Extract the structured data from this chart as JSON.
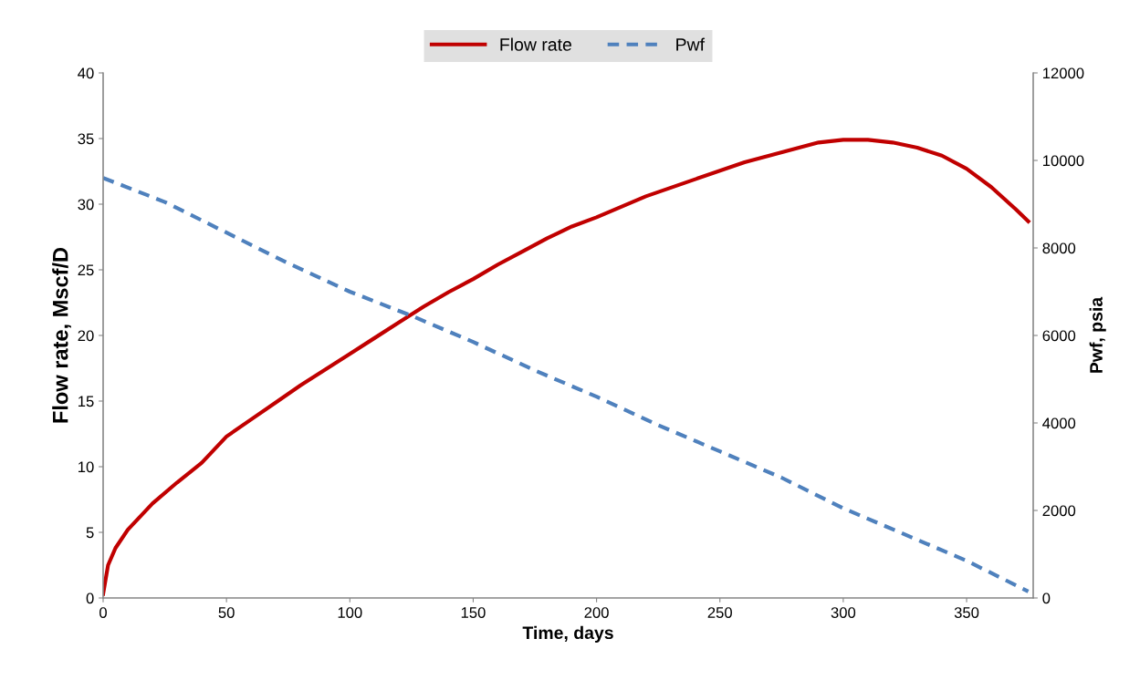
{
  "chart_data": {
    "type": "line",
    "xlabel": "Time, days",
    "ylabel": "Flow rate, Mscf/D",
    "y2label": "Pwf, psia",
    "xlim": [
      0,
      377
    ],
    "xticks": [
      0,
      50,
      100,
      150,
      200,
      250,
      300,
      350
    ],
    "ylim": [
      0,
      40
    ],
    "yticks": [
      0,
      5,
      10,
      15,
      20,
      25,
      30,
      35,
      40
    ],
    "y2lim": [
      0,
      12000
    ],
    "y2ticks": [
      0,
      2000,
      4000,
      6000,
      8000,
      10000,
      12000
    ],
    "legend": "top",
    "grid": false,
    "series": [
      {
        "name": "Flow rate",
        "color": "#c00000",
        "line_style": "solid",
        "x": [
          0,
          2,
          5,
          10,
          20,
          30,
          40,
          50,
          60,
          70,
          80,
          90,
          100,
          110,
          120,
          130,
          140,
          150,
          160,
          170,
          180,
          190,
          200,
          220,
          240,
          260,
          280,
          290,
          300,
          310,
          320,
          330,
          340,
          350,
          360,
          370,
          375
        ],
        "values": [
          0.3,
          2.5,
          3.8,
          5.2,
          7.2,
          8.8,
          10.3,
          12.3,
          13.6,
          14.9,
          16.2,
          17.4,
          18.6,
          19.8,
          21.0,
          22.2,
          23.3,
          24.3,
          25.4,
          26.4,
          27.4,
          28.3,
          29.0,
          30.6,
          31.9,
          33.2,
          34.2,
          34.7,
          34.9,
          34.9,
          34.7,
          34.3,
          33.7,
          32.7,
          31.3,
          29.6,
          28.7
        ]
      },
      {
        "name": "Pwf",
        "color": "#4f81bd",
        "line_style": "dashed",
        "axis": "y2",
        "x": [
          0,
          25,
          50,
          75,
          100,
          125,
          150,
          175,
          200,
          225,
          250,
          275,
          300,
          325,
          350,
          375
        ],
        "values": [
          9600,
          9050,
          8350,
          7650,
          7000,
          6450,
          5850,
          5200,
          4600,
          3950,
          3350,
          2750,
          2050,
          1450,
          850,
          150
        ]
      }
    ]
  }
}
